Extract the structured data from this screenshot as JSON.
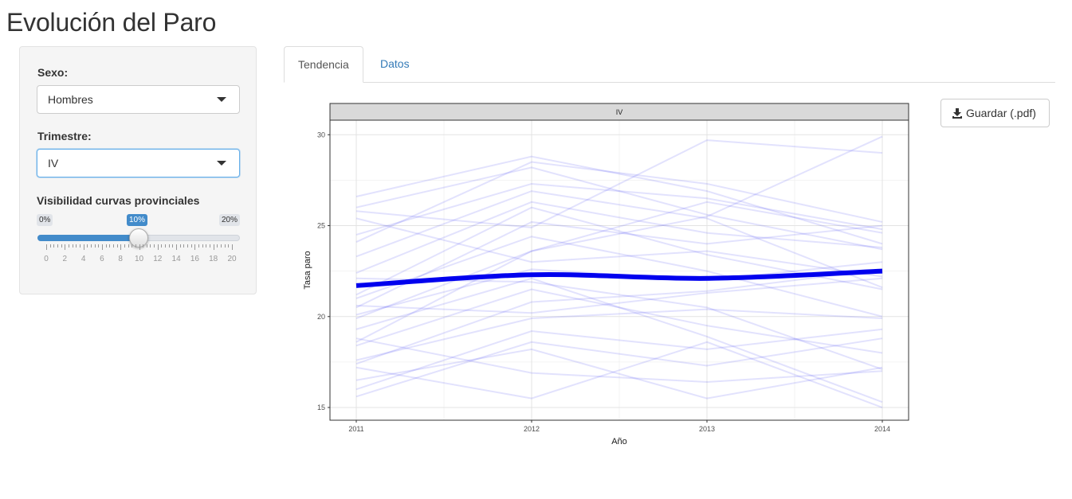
{
  "page": {
    "title": "Evolución del Paro"
  },
  "sidebar": {
    "sexo": {
      "label": "Sexo:",
      "value": "Hombres"
    },
    "trimestre": {
      "label": "Trimestre:",
      "value": "IV"
    },
    "visibilidad": {
      "label": "Visibilidad curvas provinciales",
      "min_label": "0%",
      "max_label": "20%",
      "value_label": "10%",
      "value": 10,
      "min": 0,
      "max": 20,
      "ticks": [
        "0",
        "2",
        "4",
        "6",
        "8",
        "10",
        "12",
        "14",
        "16",
        "18",
        "20"
      ]
    }
  },
  "tabs": [
    {
      "label": "Tendencia",
      "active": true
    },
    {
      "label": "Datos",
      "active": false
    }
  ],
  "download": {
    "label": "Guardar (.pdf)",
    "icon": "download-icon"
  },
  "chart_data": {
    "type": "line",
    "facet_label": "IV",
    "xlabel": "Año",
    "ylabel": "Tasa paro",
    "x": [
      2011,
      2012,
      2013,
      2014
    ],
    "x_ticks": [
      "2011",
      "2012",
      "2013",
      "2014"
    ],
    "y_ticks": [
      "15",
      "20",
      "25",
      "30"
    ],
    "ylim": [
      14.3,
      30.8
    ],
    "grid": true,
    "colors": {
      "main": "#0000ee",
      "province": "#3333ee",
      "strip": "#d9d9d9"
    },
    "series": [
      {
        "values": [
          21.7,
          22.3,
          22.1,
          22.5
        ],
        "main": true
      },
      {
        "values": [
          26.6,
          28.8,
          26.9,
          24.0
        ]
      },
      {
        "values": [
          26.0,
          28.2,
          25.6,
          23.7
        ]
      },
      {
        "values": [
          24.1,
          28.5,
          27.3,
          25.2
        ]
      },
      {
        "values": [
          24.5,
          27.3,
          26.5,
          24.8
        ]
      },
      {
        "values": [
          23.3,
          26.9,
          25.4,
          21.6
        ]
      },
      {
        "values": [
          25.8,
          24.9,
          29.7,
          29.0
        ]
      },
      {
        "values": [
          22.4,
          26.3,
          24.6,
          23.8
        ]
      },
      {
        "values": [
          21.2,
          26.0,
          23.4,
          21.5
        ]
      },
      {
        "values": [
          20.5,
          25.2,
          24.0,
          25.0
        ]
      },
      {
        "values": [
          19.9,
          23.6,
          25.5,
          29.9
        ]
      },
      {
        "values": [
          18.6,
          23.6,
          26.3,
          24.6
        ]
      },
      {
        "values": [
          20.1,
          22.6,
          22.0,
          23.0
        ]
      },
      {
        "values": [
          22.1,
          21.9,
          20.5,
          17.1
        ]
      },
      {
        "values": [
          18.4,
          21.5,
          19.5,
          18.0
        ]
      },
      {
        "values": [
          17.4,
          20.8,
          21.4,
          22.6
        ]
      },
      {
        "values": [
          17.6,
          19.9,
          20.4,
          19.9
        ]
      },
      {
        "values": [
          16.0,
          19.2,
          18.2,
          19.3
        ]
      },
      {
        "values": [
          15.6,
          18.6,
          17.3,
          18.8
        ]
      },
      {
        "values": [
          16.5,
          18.2,
          15.5,
          17.2
        ]
      },
      {
        "values": [
          20.6,
          20.2,
          21.3,
          22.1
        ]
      },
      {
        "values": [
          19.3,
          22.1,
          18.9,
          15.3
        ]
      },
      {
        "values": [
          18.8,
          16.9,
          16.4,
          17.0
        ]
      },
      {
        "values": [
          17.2,
          15.5,
          18.6,
          15.0
        ]
      },
      {
        "values": [
          21.0,
          24.4,
          22.5,
          20.0
        ]
      },
      {
        "values": [
          25.4,
          23.0,
          23.6,
          22.2
        ]
      }
    ]
  }
}
